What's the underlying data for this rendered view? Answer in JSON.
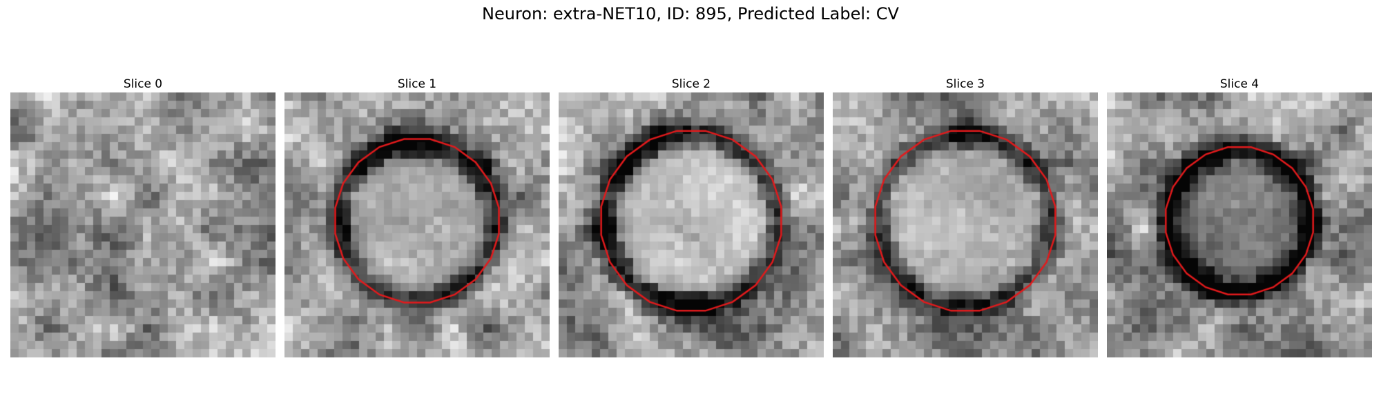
{
  "figure": {
    "title": "Neuron: extra-NET10, ID: 895, Predicted Label: CV"
  },
  "panels": [
    {
      "title": "Slice 0",
      "has_contour": false,
      "contour_radius": 0,
      "ring_strength": 0.1,
      "center_brightness": 0.55
    },
    {
      "title": "Slice 1",
      "has_contour": true,
      "contour_radius": 10,
      "ring_strength": 0.55,
      "center_brightness": 0.72
    },
    {
      "title": "Slice 2",
      "has_contour": true,
      "contour_radius": 11,
      "ring_strength": 0.5,
      "center_brightness": 0.85
    },
    {
      "title": "Slice 3",
      "has_contour": true,
      "contour_radius": 11,
      "ring_strength": 0.45,
      "center_brightness": 0.75
    },
    {
      "title": "Slice 4",
      "has_contour": true,
      "contour_radius": 9,
      "ring_strength": 0.75,
      "center_brightness": 0.4
    }
  ],
  "colors": {
    "contour": "#e31a1c"
  }
}
